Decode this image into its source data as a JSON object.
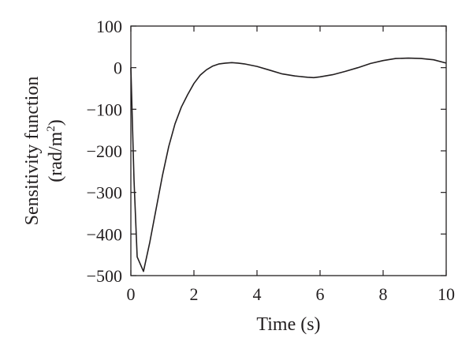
{
  "chart_data": {
    "type": "line",
    "title": "",
    "xlabel": "Time (s)",
    "ylabel": {
      "line1": "Sensitivity function",
      "line2_base": "(rad/m",
      "line2_sup": "2",
      "line2_close": ")"
    },
    "xlim": [
      0,
      10
    ],
    "ylim": [
      -500,
      100
    ],
    "xticks": [
      0,
      2,
      4,
      6,
      8,
      10
    ],
    "yticks": [
      100,
      0,
      -100,
      -200,
      -300,
      -400,
      -500
    ],
    "xtick_labels": [
      "0",
      "2",
      "4",
      "6",
      "8",
      "10"
    ],
    "ytick_labels": [
      "100",
      "0",
      "−100",
      "−200",
      "−300",
      "−400",
      "−500"
    ],
    "grid": false,
    "legend": "none",
    "colors": {
      "line": "#231f20",
      "axes": "#231f20"
    },
    "series": [
      {
        "x": [
          0,
          0.1,
          0.2,
          0.4,
          0.6,
          0.8,
          1.0,
          1.2,
          1.4,
          1.6,
          1.8,
          2.0,
          2.2,
          2.4,
          2.6,
          2.8,
          3.0,
          3.2,
          3.4,
          3.6,
          3.8,
          4.0,
          4.4,
          4.8,
          5.2,
          5.6,
          5.8,
          6.0,
          6.4,
          6.8,
          7.2,
          7.6,
          8.0,
          8.4,
          8.8,
          9.2,
          9.6,
          10.0
        ],
        "y": [
          0,
          -270,
          -455,
          -490,
          -420,
          -340,
          -260,
          -190,
          -135,
          -95,
          -65,
          -38,
          -18,
          -5,
          4,
          9,
          11,
          12,
          11,
          9,
          6,
          3,
          -6,
          -15,
          -20,
          -23,
          -24,
          -22,
          -17,
          -9,
          0,
          10,
          17,
          22,
          23,
          22,
          19,
          11
        ]
      }
    ]
  }
}
